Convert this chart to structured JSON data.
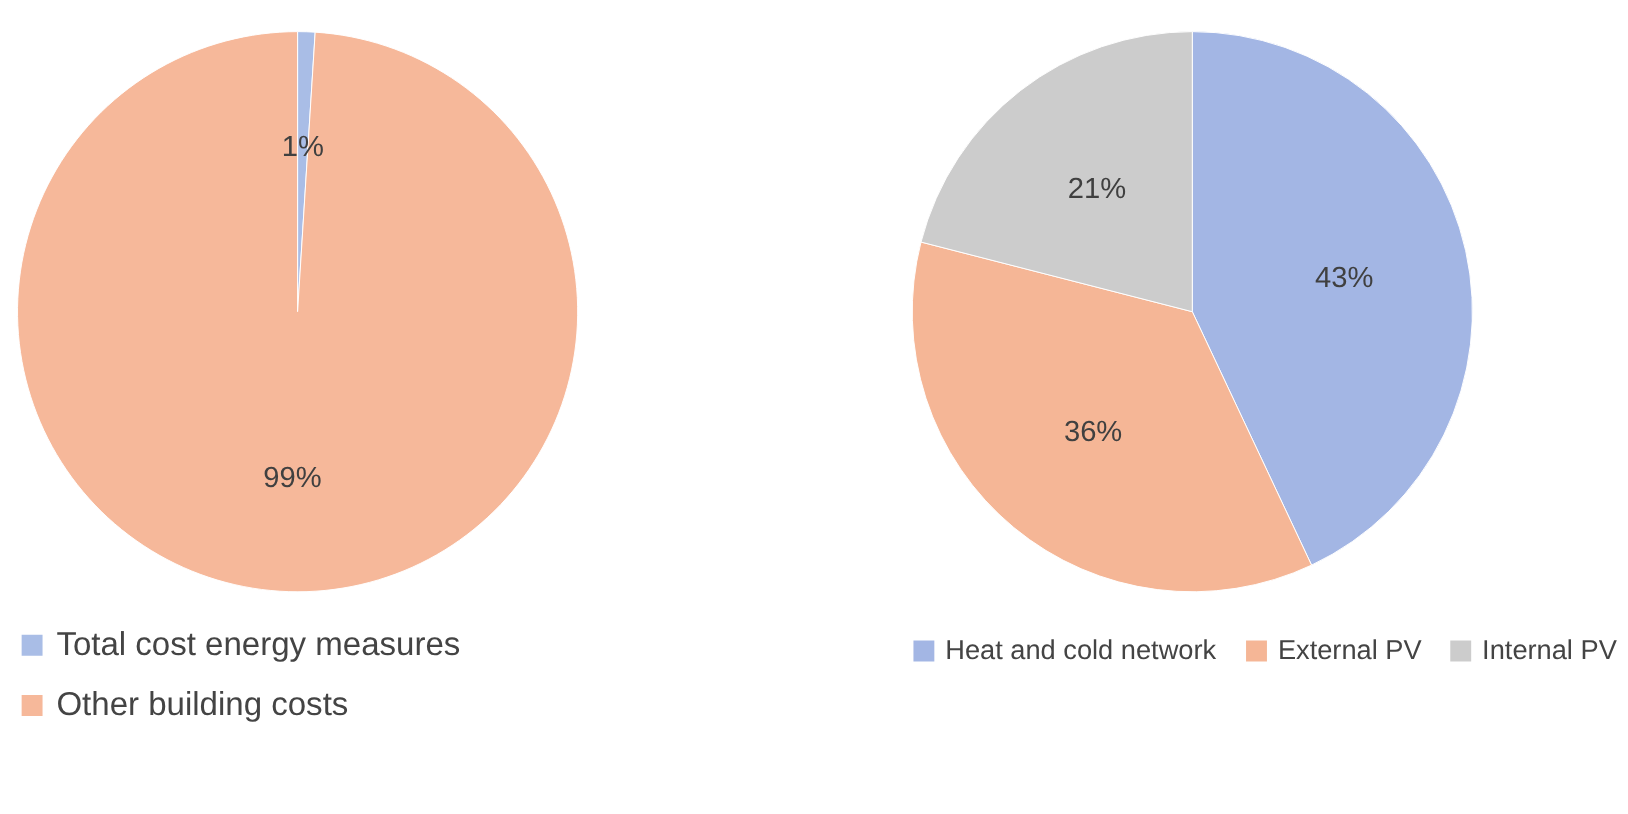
{
  "chart_data": [
    {
      "type": "pie",
      "categories": [
        "Total cost energy measures",
        "Other building costs"
      ],
      "values": [
        1,
        99
      ],
      "colors": [
        "#a9bde6",
        "#f6b89a"
      ],
      "value_labels": [
        "1%",
        "99%"
      ],
      "legend": "bottom"
    },
    {
      "type": "pie",
      "categories": [
        "Heat and cold network",
        "External PV",
        "Internal PV"
      ],
      "values": [
        43,
        36,
        21
      ],
      "colors": [
        "#a3b6e4",
        "#f5b696",
        "#cccccc"
      ],
      "value_labels": [
        "43%",
        "36%",
        "21%"
      ],
      "legend": "bottom"
    }
  ]
}
